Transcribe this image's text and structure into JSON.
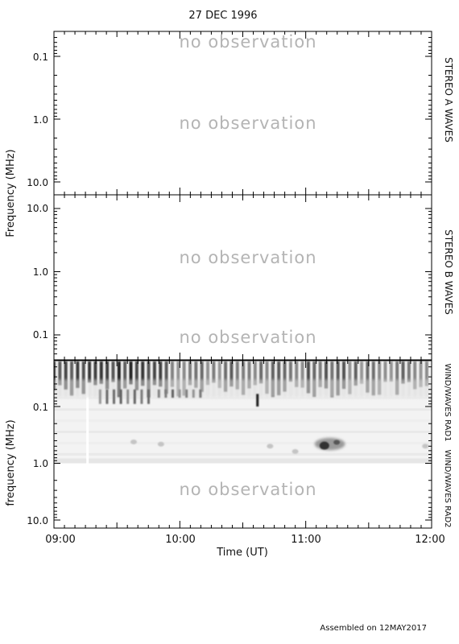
{
  "title": "27 DEC 1996",
  "footer": "Assembled on 12MAY2017",
  "xlabel": "Time (UT)",
  "x_ticks": [
    "09:00",
    "10:00",
    "11:00",
    "12:00"
  ],
  "no_obs_text": "no observation",
  "chart_data": [
    {
      "type": "heatmap",
      "instrument": "STEREO A WAVES",
      "ylabel": "Frequency (MHz)",
      "y_scale": "log",
      "y_direction": "frequency increases downward",
      "y_ticks": [
        "0.1",
        "1.0",
        "10.0"
      ],
      "y_tick_values": [
        0.1,
        1.0,
        10.0
      ],
      "ylim": [
        0.025,
        16
      ],
      "xlim": [
        "09:00",
        "12:00"
      ],
      "data": "no observation",
      "annotations": [
        "no observation",
        "no observation"
      ]
    },
    {
      "type": "heatmap",
      "instrument": "STEREO B WAVES",
      "ylabel": "Frequency (MHz)",
      "y_scale": "log",
      "y_direction": "frequency increases upward",
      "y_ticks": [
        "10.0",
        "1.0",
        "0.1"
      ],
      "y_tick_values": [
        10.0,
        1.0,
        0.1
      ],
      "ylim": [
        0.04,
        16
      ],
      "xlim": [
        "09:00",
        "12:00"
      ],
      "data": "no observation",
      "annotations": [
        "no observation",
        "no observation"
      ]
    },
    {
      "type": "heatmap",
      "instrument": "WIND/WAVES RAD1",
      "instrument2": "WIND/WAVES RAD2",
      "ylabel": "frequency (MHz)",
      "y_scale": "log",
      "y_direction": "frequency increases downward",
      "y_ticks": [
        "0.1",
        "1.0",
        "10.0"
      ],
      "y_tick_values": [
        0.1,
        1.0,
        10.0
      ],
      "ylim": [
        0.02,
        16
      ],
      "xlim": [
        "09:00",
        "12:00"
      ],
      "colormap": "white (low) to black (high intensity)",
      "coverage": {
        "rad1_range_mhz": [
          0.02,
          1.0
        ],
        "rad2": "no observation"
      },
      "data_gap_utc": "09:16",
      "features": [
        {
          "kind": "periodic bursts",
          "time_start": "09:00",
          "time_end": "12:00",
          "freq_range_mhz": [
            0.02,
            0.05
          ]
        },
        {
          "kind": "burst series",
          "time_start": "09:22",
          "time_end": "09:48",
          "freq_range_mhz": [
            0.05,
            0.09
          ]
        },
        {
          "kind": "burst series",
          "time_start": "09:50",
          "time_end": "10:12",
          "freq_range_mhz": [
            0.05,
            0.07
          ]
        },
        {
          "kind": "narrow burst",
          "time": "10:37",
          "freq_range_mhz": [
            0.06,
            0.1
          ]
        },
        {
          "kind": "faint spot",
          "time": "09:38",
          "freq_mhz": 0.42
        },
        {
          "kind": "faint spot",
          "time": "09:51",
          "freq_mhz": 0.46
        },
        {
          "kind": "faint spot",
          "time": "10:43",
          "freq_mhz": 0.5
        },
        {
          "kind": "faint spot",
          "time": "10:55",
          "freq_mhz": 0.62
        },
        {
          "kind": "bright patch",
          "time_start": "11:05",
          "time_end": "11:18",
          "freq_range_mhz": [
            0.38,
            0.55
          ]
        },
        {
          "kind": "faint spot",
          "time": "11:57",
          "freq_mhz": 0.5
        }
      ],
      "annotations": [
        "no observation"
      ]
    }
  ]
}
